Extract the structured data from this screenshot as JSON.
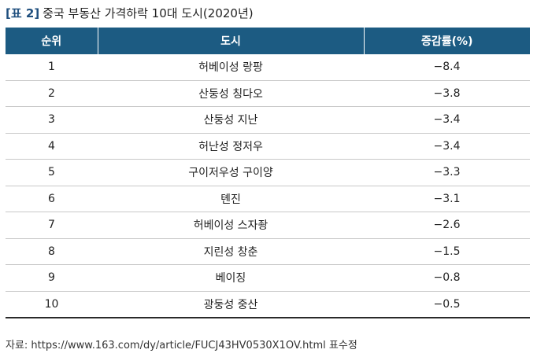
{
  "title": {
    "label": "[표 2]",
    "text": "중국 부동산 가격하락 10대 도시(2020년)"
  },
  "table": {
    "headers": [
      "순위",
      "도시",
      "증감률(%)"
    ],
    "rows": [
      [
        "1",
        "허베이성 랑팡",
        "−8.4"
      ],
      [
        "2",
        "산둥성 칭다오",
        "−3.8"
      ],
      [
        "3",
        "산둥성 지난",
        "−3.4"
      ],
      [
        "4",
        "허난성 정저우",
        "−3.4"
      ],
      [
        "5",
        "구이저우성 구이양",
        "−3.3"
      ],
      [
        "6",
        "톈진",
        "−3.1"
      ],
      [
        "7",
        "허베이성 스자좡",
        "−2.6"
      ],
      [
        "8",
        "지린성 창춘",
        "−1.5"
      ],
      [
        "9",
        "베이징",
        "−0.8"
      ],
      [
        "10",
        "광둥성 중산",
        "−0.5"
      ]
    ]
  },
  "source": "자료: https://www.163.com/dy/article/FUCJ43HV0530X1OV.html 표수정"
}
